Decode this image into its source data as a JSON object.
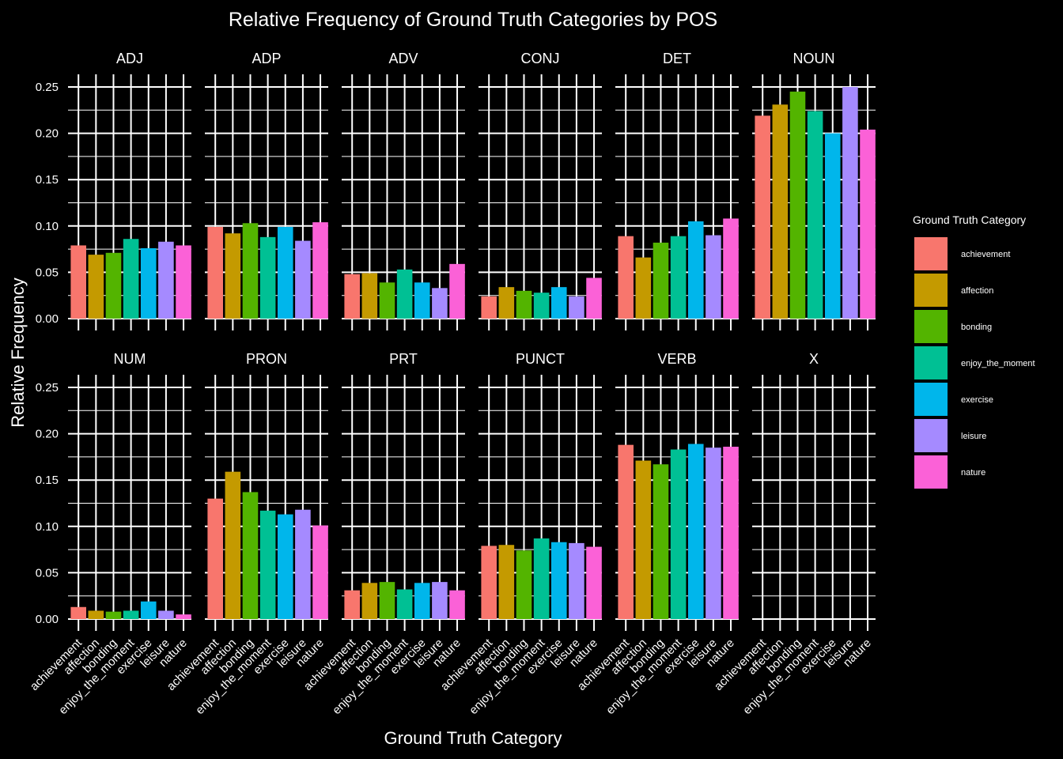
{
  "chart_data": {
    "type": "bar",
    "title": "Relative Frequency of Ground Truth Categories by POS",
    "xlabel": "Ground Truth Category",
    "ylabel": "Relative Frequency",
    "ylim": [
      0,
      0.25
    ],
    "yticks": [
      "0.00",
      "0.05",
      "0.10",
      "0.15",
      "0.20",
      "0.25"
    ],
    "grid": true,
    "legend": {
      "title": "Ground Truth Category",
      "position": "right"
    },
    "categories": [
      "achievement",
      "affection",
      "bonding",
      "enjoy_the_moment",
      "exercise",
      "leisure",
      "nature"
    ],
    "colors": {
      "achievement": "#F8766D",
      "affection": "#C49A00",
      "bonding": "#53B400",
      "enjoy_the_moment": "#00C094",
      "exercise": "#00B6EB",
      "leisure": "#A58AFF",
      "nature": "#FB61D7"
    },
    "facets": [
      {
        "name": "ADJ",
        "values": [
          0.079,
          0.069,
          0.071,
          0.086,
          0.076,
          0.083,
          0.079
        ]
      },
      {
        "name": "ADP",
        "values": [
          0.099,
          0.092,
          0.103,
          0.088,
          0.099,
          0.084,
          0.104
        ]
      },
      {
        "name": "ADV",
        "values": [
          0.048,
          0.049,
          0.039,
          0.053,
          0.039,
          0.033,
          0.059
        ]
      },
      {
        "name": "CONJ",
        "values": [
          0.024,
          0.034,
          0.03,
          0.028,
          0.034,
          0.024,
          0.044
        ]
      },
      {
        "name": "DET",
        "values": [
          0.089,
          0.066,
          0.082,
          0.089,
          0.105,
          0.09,
          0.108
        ]
      },
      {
        "name": "NOUN",
        "values": [
          0.219,
          0.231,
          0.245,
          0.224,
          0.2,
          0.25,
          0.204
        ]
      },
      {
        "name": "NUM",
        "values": [
          0.013,
          0.009,
          0.008,
          0.009,
          0.019,
          0.009,
          0.005
        ]
      },
      {
        "name": "PRON",
        "values": [
          0.13,
          0.159,
          0.137,
          0.117,
          0.113,
          0.118,
          0.101
        ]
      },
      {
        "name": "PRT",
        "values": [
          0.031,
          0.039,
          0.04,
          0.032,
          0.039,
          0.04,
          0.031
        ]
      },
      {
        "name": "PUNCT",
        "values": [
          0.079,
          0.08,
          0.074,
          0.087,
          0.083,
          0.082,
          0.078
        ]
      },
      {
        "name": "VERB",
        "values": [
          0.188,
          0.171,
          0.167,
          0.183,
          0.189,
          0.185,
          0.186
        ]
      },
      {
        "name": "X",
        "values": [
          0,
          0,
          0,
          0,
          0,
          0,
          0
        ]
      }
    ]
  }
}
